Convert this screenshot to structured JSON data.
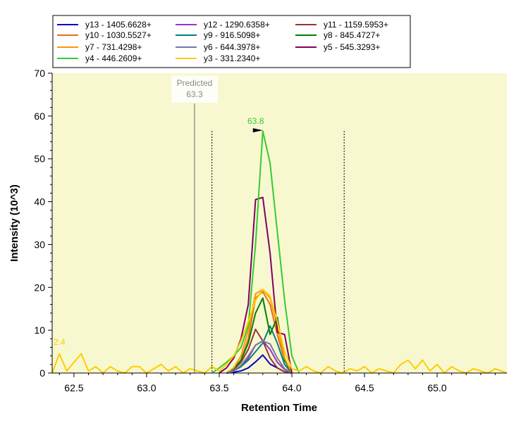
{
  "chart_data": {
    "type": "line",
    "title": "",
    "xlabel": "Retention Time",
    "ylabel": "Intensity (10^3)",
    "xlim": [
      62.35,
      65.48
    ],
    "ylim": [
      0,
      70
    ],
    "x_ticks": [
      "62.5",
      "63.0",
      "63.5",
      "64.0",
      "64.5",
      "65.0"
    ],
    "y_ticks": [
      "0",
      "10",
      "20",
      "30",
      "40",
      "50",
      "60",
      "70"
    ],
    "plot_background": "#f8f8d0",
    "legend_position": "top",
    "predicted": {
      "label": "Predicted",
      "value": "63.3",
      "x": 63.33
    },
    "integration_bounds": [
      63.45,
      64.36
    ],
    "peak_label": {
      "text": "63.8",
      "x": 63.79,
      "y": 56.5,
      "color": "#33cc33"
    },
    "edge_label": {
      "text": "2.4",
      "color": "#ffcc00"
    },
    "series": [
      {
        "name": "y13 - 1405.6628+",
        "color": "#0000cc",
        "x": [
          63.55,
          63.6,
          63.65,
          63.7,
          63.75,
          63.8,
          63.85,
          63.9,
          63.95,
          64.0
        ],
        "y": [
          0,
          0.2,
          0.5,
          1.2,
          2.6,
          4.2,
          2.1,
          1.2,
          0.3,
          0
        ]
      },
      {
        "name": "y12 - 1290.6358+",
        "color": "#9933cc",
        "x": [
          63.55,
          63.6,
          63.65,
          63.7,
          63.75,
          63.8,
          63.85,
          63.9,
          63.95,
          64.0
        ],
        "y": [
          0,
          0.5,
          1.5,
          3.5,
          6.5,
          7.5,
          5.5,
          2.5,
          0.8,
          0
        ]
      },
      {
        "name": "y11 - 1159.5953+",
        "color": "#993333",
        "x": [
          63.55,
          63.6,
          63.65,
          63.7,
          63.75,
          63.8,
          63.85,
          63.9,
          63.95,
          64.0
        ],
        "y": [
          0,
          0.8,
          2.5,
          5.5,
          10.2,
          7.5,
          3.5,
          1.2,
          0.3,
          0
        ]
      },
      {
        "name": "y10 - 1030.5527+",
        "color": "#e07020",
        "x": [
          63.55,
          63.6,
          63.65,
          63.7,
          63.75,
          63.8,
          63.85,
          63.9,
          63.95,
          64.0
        ],
        "y": [
          0,
          1,
          3,
          8,
          17.5,
          19,
          16,
          9,
          3,
          0
        ]
      },
      {
        "name": "y9 - 916.5098+",
        "color": "#008080",
        "x": [
          63.55,
          63.6,
          63.65,
          63.7,
          63.75,
          63.8,
          63.85,
          63.9,
          63.95,
          64.0
        ],
        "y": [
          0,
          0.5,
          1.5,
          3,
          5,
          7,
          11,
          7,
          2,
          0
        ]
      },
      {
        "name": "y8 - 845.4727+",
        "color": "#008000",
        "x": [
          63.55,
          63.6,
          63.65,
          63.7,
          63.75,
          63.8,
          63.85,
          63.9,
          63.95,
          64.0
        ],
        "y": [
          0,
          1,
          3,
          7,
          14,
          17.5,
          9,
          13,
          3,
          0
        ]
      },
      {
        "name": "y7 - 731.4298+",
        "color": "#ff9900",
        "x": [
          63.55,
          63.6,
          63.65,
          63.7,
          63.75,
          63.8,
          63.85,
          63.9,
          63.95,
          64.0
        ],
        "y": [
          0,
          1.2,
          4,
          10,
          18.5,
          19.5,
          17.5,
          11,
          3.5,
          0
        ]
      },
      {
        "name": "y6 - 644.3978+",
        "color": "#7777aa",
        "x": [
          63.55,
          63.6,
          63.65,
          63.7,
          63.75,
          63.8,
          63.85,
          63.9,
          63.95,
          64.0
        ],
        "y": [
          0,
          0.5,
          1.8,
          4,
          6.5,
          7.5,
          6.8,
          3.5,
          1,
          0
        ]
      },
      {
        "name": "y5 - 545.3293+",
        "color": "#800060",
        "x": [
          63.5,
          63.55,
          63.6,
          63.65,
          63.7,
          63.75,
          63.8,
          63.85,
          63.9,
          63.95,
          64.0
        ],
        "y": [
          0,
          1.2,
          3.5,
          8,
          16,
          40.5,
          41,
          28,
          9.5,
          9,
          0
        ]
      },
      {
        "name": "y4 - 446.2609+",
        "color": "#33cc33",
        "x": [
          63.45,
          63.5,
          63.55,
          63.6,
          63.65,
          63.7,
          63.75,
          63.8,
          63.85,
          63.9,
          63.95,
          64.0,
          64.05
        ],
        "y": [
          0,
          1.2,
          2.5,
          4,
          6,
          11,
          30,
          56.5,
          49,
          33,
          17,
          4,
          0
        ]
      },
      {
        "name": "y3 - 331.2340+",
        "color": "#ffcc00",
        "x": [
          62.35,
          62.4,
          62.45,
          62.5,
          62.55,
          62.6,
          62.65,
          62.7,
          62.75,
          62.8,
          62.85,
          62.9,
          62.95,
          63.0,
          63.05,
          63.1,
          63.15,
          63.2,
          63.25,
          63.3,
          63.35,
          63.4,
          63.45,
          63.5,
          63.55,
          63.6,
          63.65,
          63.7,
          63.75,
          63.8,
          63.85,
          63.9,
          63.95,
          64.0,
          64.05,
          64.1,
          64.15,
          64.2,
          64.25,
          64.3,
          64.35,
          64.4,
          64.45,
          64.5,
          64.55,
          64.6,
          64.65,
          64.7,
          64.75,
          64.8,
          64.85,
          64.9,
          64.95,
          65.0,
          65.05,
          65.1,
          65.15,
          65.2,
          65.25,
          65.3,
          65.35,
          65.4,
          65.48
        ],
        "y": [
          0,
          4.5,
          0.5,
          2.5,
          4.5,
          0.5,
          1.5,
          0,
          1.5,
          0.5,
          0,
          1.5,
          1.5,
          0,
          1,
          2,
          0.5,
          1.5,
          0,
          1,
          0.5,
          0,
          1.5,
          0.5,
          2,
          4,
          7.5,
          12,
          17,
          19.5,
          18,
          12,
          5,
          1,
          0.5,
          1.5,
          0.5,
          0,
          1.5,
          0.5,
          0,
          1,
          0.5,
          1.5,
          0,
          1,
          0.5,
          0,
          2,
          3,
          1,
          3,
          0.5,
          2,
          0,
          1.5,
          0.5,
          0,
          1,
          0.5,
          0,
          1,
          0
        ]
      }
    ]
  }
}
